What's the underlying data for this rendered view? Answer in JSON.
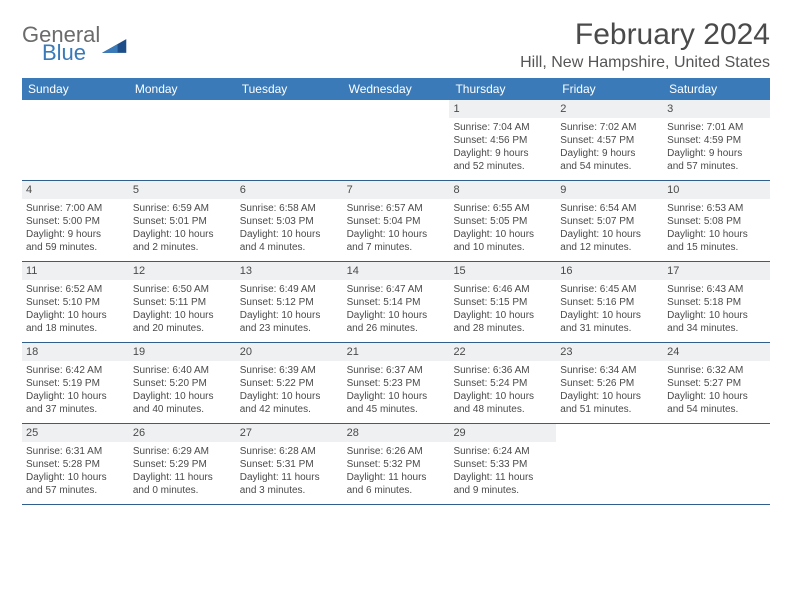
{
  "brand": {
    "general": "General",
    "blue": "Blue"
  },
  "title": "February 2024",
  "location": "Hill, New Hampshire, United States",
  "colors": {
    "header_bg": "#3a7ab8",
    "row_border": "#2f5f8a",
    "daynum_bg": "#eef0f1",
    "text": "#4a4a4a"
  },
  "days_of_week": [
    "Sunday",
    "Monday",
    "Tuesday",
    "Wednesday",
    "Thursday",
    "Friday",
    "Saturday"
  ],
  "weeks": [
    [
      null,
      null,
      null,
      null,
      {
        "n": "1",
        "sunrise": "7:04 AM",
        "sunset": "4:56 PM",
        "day_h": "9",
        "day_m": "52"
      },
      {
        "n": "2",
        "sunrise": "7:02 AM",
        "sunset": "4:57 PM",
        "day_h": "9",
        "day_m": "54"
      },
      {
        "n": "3",
        "sunrise": "7:01 AM",
        "sunset": "4:59 PM",
        "day_h": "9",
        "day_m": "57"
      }
    ],
    [
      {
        "n": "4",
        "sunrise": "7:00 AM",
        "sunset": "5:00 PM",
        "day_h": "9",
        "day_m": "59"
      },
      {
        "n": "5",
        "sunrise": "6:59 AM",
        "sunset": "5:01 PM",
        "day_h": "10",
        "day_m": "2"
      },
      {
        "n": "6",
        "sunrise": "6:58 AM",
        "sunset": "5:03 PM",
        "day_h": "10",
        "day_m": "4"
      },
      {
        "n": "7",
        "sunrise": "6:57 AM",
        "sunset": "5:04 PM",
        "day_h": "10",
        "day_m": "7"
      },
      {
        "n": "8",
        "sunrise": "6:55 AM",
        "sunset": "5:05 PM",
        "day_h": "10",
        "day_m": "10"
      },
      {
        "n": "9",
        "sunrise": "6:54 AM",
        "sunset": "5:07 PM",
        "day_h": "10",
        "day_m": "12"
      },
      {
        "n": "10",
        "sunrise": "6:53 AM",
        "sunset": "5:08 PM",
        "day_h": "10",
        "day_m": "15"
      }
    ],
    [
      {
        "n": "11",
        "sunrise": "6:52 AM",
        "sunset": "5:10 PM",
        "day_h": "10",
        "day_m": "18"
      },
      {
        "n": "12",
        "sunrise": "6:50 AM",
        "sunset": "5:11 PM",
        "day_h": "10",
        "day_m": "20"
      },
      {
        "n": "13",
        "sunrise": "6:49 AM",
        "sunset": "5:12 PM",
        "day_h": "10",
        "day_m": "23"
      },
      {
        "n": "14",
        "sunrise": "6:47 AM",
        "sunset": "5:14 PM",
        "day_h": "10",
        "day_m": "26"
      },
      {
        "n": "15",
        "sunrise": "6:46 AM",
        "sunset": "5:15 PM",
        "day_h": "10",
        "day_m": "28"
      },
      {
        "n": "16",
        "sunrise": "6:45 AM",
        "sunset": "5:16 PM",
        "day_h": "10",
        "day_m": "31"
      },
      {
        "n": "17",
        "sunrise": "6:43 AM",
        "sunset": "5:18 PM",
        "day_h": "10",
        "day_m": "34"
      }
    ],
    [
      {
        "n": "18",
        "sunrise": "6:42 AM",
        "sunset": "5:19 PM",
        "day_h": "10",
        "day_m": "37"
      },
      {
        "n": "19",
        "sunrise": "6:40 AM",
        "sunset": "5:20 PM",
        "day_h": "10",
        "day_m": "40"
      },
      {
        "n": "20",
        "sunrise": "6:39 AM",
        "sunset": "5:22 PM",
        "day_h": "10",
        "day_m": "42"
      },
      {
        "n": "21",
        "sunrise": "6:37 AM",
        "sunset": "5:23 PM",
        "day_h": "10",
        "day_m": "45"
      },
      {
        "n": "22",
        "sunrise": "6:36 AM",
        "sunset": "5:24 PM",
        "day_h": "10",
        "day_m": "48"
      },
      {
        "n": "23",
        "sunrise": "6:34 AM",
        "sunset": "5:26 PM",
        "day_h": "10",
        "day_m": "51"
      },
      {
        "n": "24",
        "sunrise": "6:32 AM",
        "sunset": "5:27 PM",
        "day_h": "10",
        "day_m": "54"
      }
    ],
    [
      {
        "n": "25",
        "sunrise": "6:31 AM",
        "sunset": "5:28 PM",
        "day_h": "10",
        "day_m": "57"
      },
      {
        "n": "26",
        "sunrise": "6:29 AM",
        "sunset": "5:29 PM",
        "day_h": "11",
        "day_m": "0"
      },
      {
        "n": "27",
        "sunrise": "6:28 AM",
        "sunset": "5:31 PM",
        "day_h": "11",
        "day_m": "3"
      },
      {
        "n": "28",
        "sunrise": "6:26 AM",
        "sunset": "5:32 PM",
        "day_h": "11",
        "day_m": "6"
      },
      {
        "n": "29",
        "sunrise": "6:24 AM",
        "sunset": "5:33 PM",
        "day_h": "11",
        "day_m": "9"
      },
      null,
      null
    ]
  ],
  "labels": {
    "sunrise": "Sunrise:",
    "sunset": "Sunset:",
    "daylight": "Daylight:",
    "hours": "hours",
    "and": "and",
    "minutes": "minutes."
  }
}
